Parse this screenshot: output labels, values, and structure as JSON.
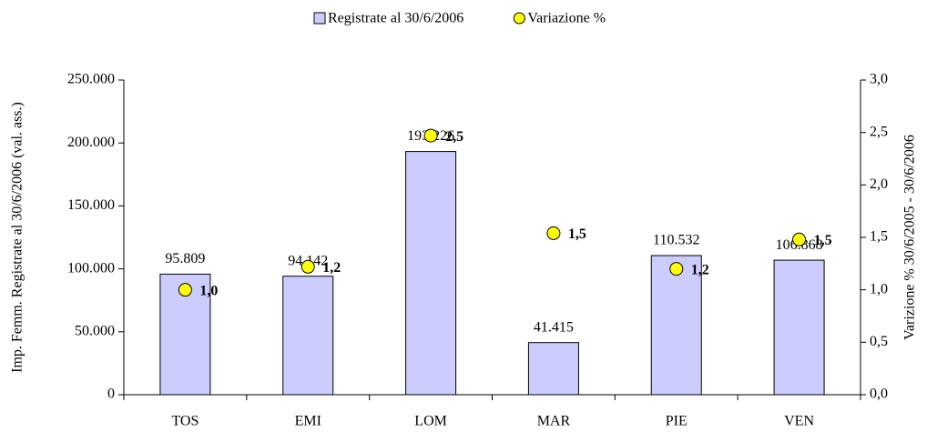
{
  "chart_data": {
    "type": "bar",
    "categories": [
      "TOS",
      "EMI",
      "LOM",
      "MAR",
      "PIE",
      "VEN"
    ],
    "series": [
      {
        "name": "Registrate al 30/6/2006",
        "color": "#ccccff",
        "values": [
          95809,
          94142,
          193226,
          41415,
          110532,
          106868
        ],
        "value_labels": [
          "95.809",
          "94.142",
          "193.226",
          "41.415",
          "110.532",
          "106.868"
        ]
      },
      {
        "name": "Variazione %",
        "color": "#ffff00",
        "type": "scatter",
        "axis": "y2",
        "values": [
          1.0,
          1.22,
          2.47,
          1.54,
          1.2,
          1.48
        ],
        "value_labels": [
          "1,0",
          "1,2",
          "2,5",
          "1,5",
          "1,2",
          "1,5"
        ]
      }
    ],
    "y_label": "Imp. Femm. Registrate al 30/6/2006 (val. ass.)",
    "y2_label": "Varizione % 30/6/2005 - 30/6/2006",
    "ylim": [
      0,
      250000
    ],
    "yticks": [
      0,
      {
        "value": 50000,
        "label": "50.000"
      },
      {
        "value": 100000,
        "label": "100.000"
      },
      {
        "value": 150000,
        "label": "150.000"
      },
      {
        "value": 200000,
        "label": "200.000"
      },
      {
        "value": 250000,
        "label": "250.000"
      }
    ],
    "y2lim": [
      0,
      3
    ],
    "y2ticks": [
      {
        "value": 0,
        "label": "0,0"
      },
      {
        "value": 0.5,
        "label": "0,5"
      },
      {
        "value": 1,
        "label": "1,0"
      },
      {
        "value": 1.5,
        "label": "1,5"
      },
      {
        "value": 2,
        "label": "2,0"
      },
      {
        "value": 2.5,
        "label": "2,5"
      },
      {
        "value": 3,
        "label": "3,0"
      }
    ],
    "legend": "top",
    "grid": false
  }
}
